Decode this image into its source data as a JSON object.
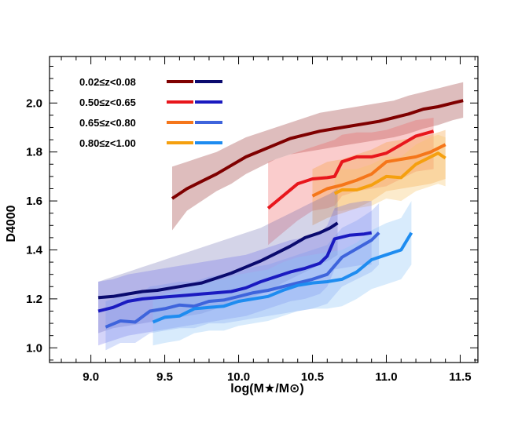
{
  "chart_data": {
    "type": "line",
    "title": "",
    "xlabel": "log(M★/M⊙)",
    "ylabel": "D4000",
    "xlim": [
      8.72,
      11.62
    ],
    "ylim": [
      0.94,
      2.19
    ],
    "x_ticks": [
      9.0,
      9.5,
      10.0,
      10.5,
      11.0,
      11.5
    ],
    "x_tick_labels": [
      "9.0",
      "9.5",
      "10.0",
      "10.5",
      "11.0",
      "11.5"
    ],
    "y_ticks": [
      1.0,
      1.2,
      1.4,
      1.6,
      1.8,
      2.0
    ],
    "y_tick_labels": [
      "1.0",
      "1.2",
      "1.4",
      "1.6",
      "1.8",
      "2.0"
    ],
    "legend_position": "top-left",
    "legend": [
      {
        "label": "0.02≤z<0.08",
        "red_color": "#7f0000",
        "blue_color": "#0a0a6e"
      },
      {
        "label": "0.50≤z<0.65",
        "red_color": "#e8161c",
        "blue_color": "#1a1ac0"
      },
      {
        "label": "0.65≤z<0.80",
        "red_color": "#f5761a",
        "blue_color": "#3e64dc"
      },
      {
        "label": "0.80≤z<1.00",
        "red_color": "#f5a00f",
        "blue_color": "#1e8cf0"
      }
    ],
    "series": [
      {
        "name": "red 0.02-0.08",
        "color": "#7f0000",
        "band_color": "#7f0000",
        "band_opacity": 0.26,
        "x": [
          9.55,
          9.65,
          9.75,
          9.85,
          9.95,
          10.05,
          10.15,
          10.25,
          10.35,
          10.45,
          10.55,
          10.65,
          10.75,
          10.85,
          10.95,
          11.05,
          11.15,
          11.25,
          11.35,
          11.45,
          11.52
        ],
        "y": [
          1.61,
          1.65,
          1.68,
          1.71,
          1.745,
          1.78,
          1.805,
          1.83,
          1.855,
          1.87,
          1.885,
          1.895,
          1.905,
          1.915,
          1.925,
          1.94,
          1.955,
          1.975,
          1.985,
          2.0,
          2.01
        ],
        "lower": [
          1.48,
          1.56,
          1.6,
          1.64,
          1.67,
          1.71,
          1.74,
          1.77,
          1.79,
          1.8,
          1.81,
          1.82,
          1.83,
          1.84,
          1.85,
          1.86,
          1.875,
          1.895,
          1.91,
          1.93,
          1.94
        ],
        "upper": [
          1.74,
          1.76,
          1.78,
          1.8,
          1.83,
          1.86,
          1.88,
          1.9,
          1.92,
          1.94,
          1.96,
          1.97,
          1.98,
          1.99,
          2.0,
          2.01,
          2.03,
          2.045,
          2.06,
          2.075,
          2.085
        ]
      },
      {
        "name": "red 0.50-0.65",
        "color": "#e8161c",
        "band_color": "#f06060",
        "band_opacity": 0.32,
        "x": [
          10.2,
          10.3,
          10.4,
          10.5,
          10.6,
          10.65,
          10.7,
          10.8,
          10.9,
          11.0,
          11.1,
          11.2,
          11.32
        ],
        "y": [
          1.57,
          1.62,
          1.67,
          1.69,
          1.695,
          1.7,
          1.76,
          1.78,
          1.78,
          1.795,
          1.83,
          1.865,
          1.885
        ],
        "lower": [
          1.42,
          1.47,
          1.52,
          1.56,
          1.57,
          1.58,
          1.62,
          1.64,
          1.65,
          1.66,
          1.69,
          1.72,
          1.73
        ],
        "upper": [
          1.76,
          1.78,
          1.8,
          1.82,
          1.84,
          1.85,
          1.87,
          1.88,
          1.88,
          1.89,
          1.91,
          1.93,
          1.94
        ]
      },
      {
        "name": "red 0.65-0.80",
        "color": "#f5761a",
        "band_color": "#f5a040",
        "band_opacity": 0.34,
        "x": [
          10.5,
          10.6,
          10.7,
          10.8,
          10.9,
          11.0,
          11.1,
          11.2,
          11.3,
          11.4
        ],
        "y": [
          1.62,
          1.65,
          1.665,
          1.685,
          1.71,
          1.76,
          1.77,
          1.78,
          1.8,
          1.83
        ],
        "lower": [
          1.5,
          1.53,
          1.55,
          1.57,
          1.6,
          1.64,
          1.65,
          1.66,
          1.67,
          1.69
        ],
        "upper": [
          1.73,
          1.76,
          1.77,
          1.79,
          1.81,
          1.84,
          1.85,
          1.86,
          1.87,
          1.89
        ]
      },
      {
        "name": "red 0.80-1.00",
        "color": "#f5a00f",
        "band_color": "#f6c56a",
        "band_opacity": 0.34,
        "x": [
          10.65,
          10.7,
          10.8,
          10.9,
          11.0,
          11.1,
          11.2,
          11.3,
          11.35,
          11.4
        ],
        "y": [
          1.63,
          1.645,
          1.645,
          1.665,
          1.7,
          1.695,
          1.75,
          1.78,
          1.795,
          1.775
        ],
        "lower": [
          1.56,
          1.56,
          1.57,
          1.58,
          1.61,
          1.6,
          1.64,
          1.66,
          1.67,
          1.66
        ],
        "upper": [
          1.72,
          1.73,
          1.73,
          1.75,
          1.78,
          1.78,
          1.83,
          1.86,
          1.87,
          1.86
        ]
      },
      {
        "name": "blue 0.02-0.08",
        "color": "#0a0a6e",
        "band_color": "#5a5aa8",
        "band_opacity": 0.26,
        "x": [
          9.05,
          9.15,
          9.25,
          9.35,
          9.45,
          9.55,
          9.65,
          9.75,
          9.85,
          9.95,
          10.05,
          10.15,
          10.25,
          10.35,
          10.45,
          10.55,
          10.62,
          10.67
        ],
        "y": [
          1.205,
          1.21,
          1.22,
          1.23,
          1.235,
          1.245,
          1.255,
          1.265,
          1.285,
          1.305,
          1.33,
          1.355,
          1.385,
          1.415,
          1.45,
          1.47,
          1.49,
          1.51
        ],
        "lower": [
          1.06,
          1.08,
          1.09,
          1.1,
          1.11,
          1.12,
          1.13,
          1.14,
          1.16,
          1.18,
          1.2,
          1.22,
          1.25,
          1.28,
          1.31,
          1.34,
          1.36,
          1.38
        ],
        "upper": [
          1.27,
          1.29,
          1.31,
          1.33,
          1.35,
          1.37,
          1.39,
          1.41,
          1.43,
          1.45,
          1.47,
          1.49,
          1.52,
          1.55,
          1.58,
          1.61,
          1.63,
          1.65
        ]
      },
      {
        "name": "blue 0.50-0.65",
        "color": "#1a1ac0",
        "band_color": "#5a5ae6",
        "band_opacity": 0.26,
        "x": [
          9.05,
          9.15,
          9.25,
          9.35,
          9.45,
          9.55,
          9.65,
          9.75,
          9.85,
          9.95,
          10.05,
          10.15,
          10.25,
          10.35,
          10.45,
          10.55,
          10.6,
          10.65,
          10.75,
          10.85,
          10.9
        ],
        "y": [
          1.15,
          1.165,
          1.19,
          1.2,
          1.205,
          1.21,
          1.215,
          1.22,
          1.225,
          1.23,
          1.245,
          1.27,
          1.29,
          1.31,
          1.325,
          1.345,
          1.375,
          1.445,
          1.46,
          1.465,
          1.47
        ],
        "lower": [
          1.01,
          1.03,
          1.05,
          1.06,
          1.07,
          1.08,
          1.09,
          1.1,
          1.11,
          1.12,
          1.13,
          1.15,
          1.17,
          1.19,
          1.2,
          1.22,
          1.25,
          1.32,
          1.33,
          1.34,
          1.34
        ],
        "upper": [
          1.27,
          1.28,
          1.3,
          1.31,
          1.32,
          1.33,
          1.34,
          1.35,
          1.36,
          1.37,
          1.38,
          1.4,
          1.42,
          1.44,
          1.45,
          1.47,
          1.5,
          1.57,
          1.59,
          1.6,
          1.6
        ]
      },
      {
        "name": "blue 0.65-0.80",
        "color": "#3e64dc",
        "band_color": "#6f8ef0",
        "band_opacity": 0.28,
        "x": [
          9.1,
          9.2,
          9.3,
          9.4,
          9.5,
          9.6,
          9.7,
          9.8,
          9.9,
          10.0,
          10.1,
          10.2,
          10.3,
          10.4,
          10.5,
          10.6,
          10.7,
          10.8,
          10.9,
          10.95
        ],
        "y": [
          1.085,
          1.11,
          1.105,
          1.15,
          1.16,
          1.175,
          1.17,
          1.19,
          1.195,
          1.21,
          1.225,
          1.235,
          1.25,
          1.265,
          1.28,
          1.3,
          1.37,
          1.405,
          1.44,
          1.47
        ],
        "lower": [
          0.99,
          1.02,
          1.02,
          1.06,
          1.07,
          1.08,
          1.08,
          1.1,
          1.1,
          1.11,
          1.12,
          1.13,
          1.14,
          1.15,
          1.16,
          1.18,
          1.25,
          1.28,
          1.31,
          1.34
        ],
        "upper": [
          1.19,
          1.21,
          1.21,
          1.25,
          1.26,
          1.27,
          1.27,
          1.29,
          1.3,
          1.31,
          1.33,
          1.34,
          1.36,
          1.38,
          1.4,
          1.42,
          1.49,
          1.52,
          1.56,
          1.59
        ]
      },
      {
        "name": "blue 0.80-1.00",
        "color": "#1e8cf0",
        "band_color": "#8cc4f6",
        "band_opacity": 0.34,
        "x": [
          9.42,
          9.5,
          9.6,
          9.7,
          9.8,
          9.9,
          10.0,
          10.1,
          10.2,
          10.3,
          10.4,
          10.5,
          10.6,
          10.7,
          10.8,
          10.9,
          11.0,
          11.1,
          11.17
        ],
        "y": [
          1.105,
          1.125,
          1.13,
          1.16,
          1.165,
          1.17,
          1.19,
          1.2,
          1.21,
          1.235,
          1.255,
          1.265,
          1.27,
          1.28,
          1.31,
          1.36,
          1.38,
          1.4,
          1.47
        ],
        "lower": [
          1.01,
          1.02,
          1.03,
          1.06,
          1.07,
          1.07,
          1.09,
          1.1,
          1.11,
          1.13,
          1.15,
          1.16,
          1.16,
          1.17,
          1.2,
          1.24,
          1.26,
          1.28,
          1.34
        ],
        "upper": [
          1.2,
          1.22,
          1.23,
          1.26,
          1.27,
          1.28,
          1.3,
          1.31,
          1.32,
          1.35,
          1.37,
          1.38,
          1.39,
          1.4,
          1.43,
          1.48,
          1.51,
          1.53,
          1.6
        ]
      }
    ]
  }
}
